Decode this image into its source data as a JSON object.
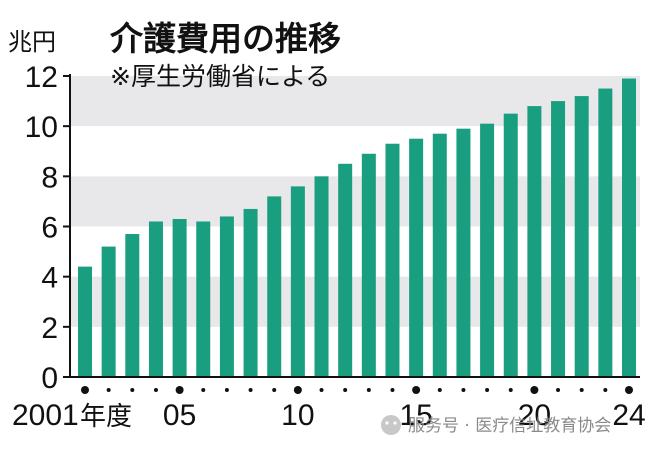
{
  "chart_data": {
    "type": "bar",
    "title": "介護費用の推移",
    "subtitle": "※厚生労働省による",
    "ylabel": "兆円",
    "ylim": [
      0,
      12
    ],
    "yticks": [
      0,
      2,
      4,
      6,
      8,
      10,
      12
    ],
    "grid": "alternating horizontal bands",
    "categories": [
      "2001",
      "2002",
      "2003",
      "2004",
      "2005",
      "2006",
      "2007",
      "2008",
      "2009",
      "2010",
      "2011",
      "2012",
      "2013",
      "2014",
      "2015",
      "2016",
      "2017",
      "2018",
      "2019",
      "2020",
      "2021",
      "2022",
      "2023",
      "2024"
    ],
    "values": [
      4.4,
      5.2,
      5.7,
      6.2,
      6.3,
      6.2,
      6.4,
      6.7,
      7.2,
      7.6,
      8.0,
      8.5,
      8.9,
      9.3,
      9.5,
      9.7,
      9.9,
      10.1,
      10.5,
      10.8,
      11.0,
      11.2,
      11.5,
      11.9
    ],
    "x_tick_labels": [
      {
        "index": 0,
        "label": "2001",
        "suffix": "年度"
      },
      {
        "index": 4,
        "label": "05"
      },
      {
        "index": 9,
        "label": "10"
      },
      {
        "index": 14,
        "label": "15"
      },
      {
        "index": 19,
        "label": "20"
      },
      {
        "index": 23,
        "label": "24"
      }
    ],
    "bar_color": "#1a9e80",
    "band_color": "#e8e8ea"
  },
  "watermark": {
    "text": "服务号 · 医疗信址教育协会"
  }
}
